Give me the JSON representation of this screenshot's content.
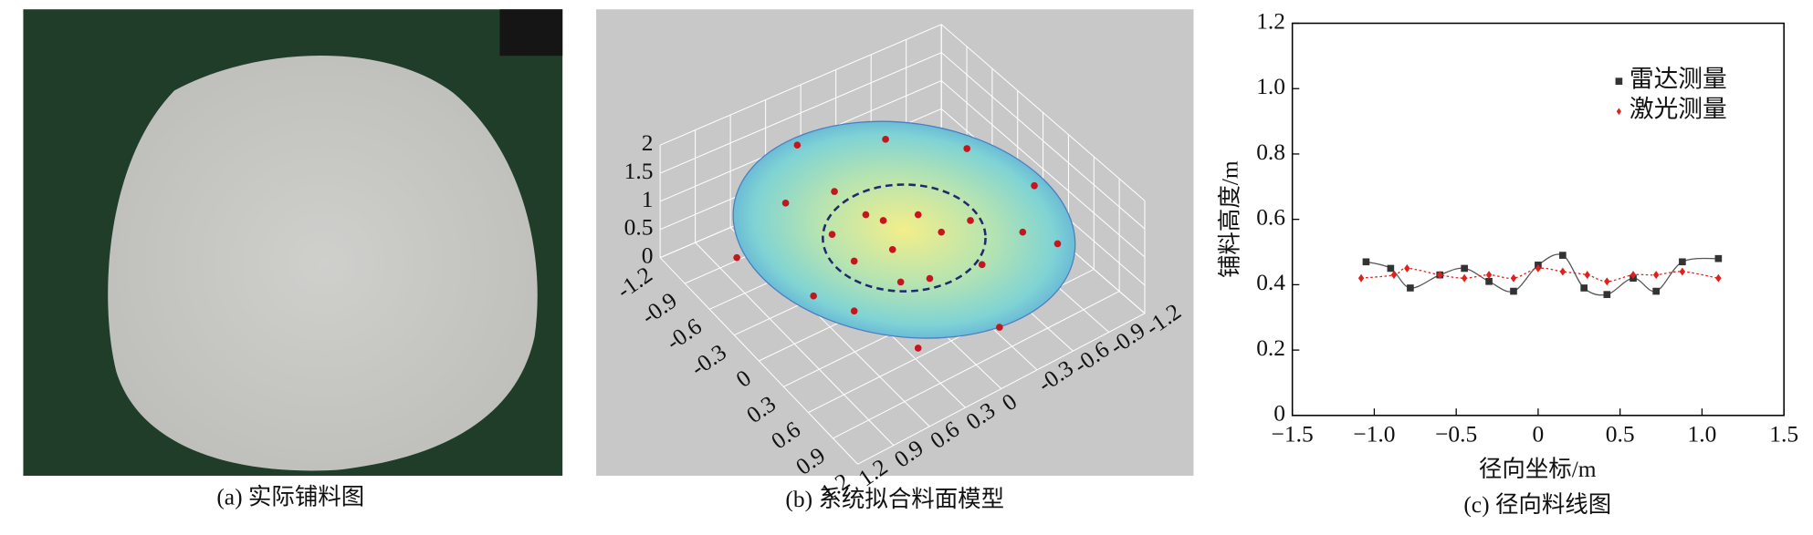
{
  "photo_panel": {
    "caption": "(a) 实际铺料图"
  },
  "model_panel": {
    "caption": "(b) 系统拟合料面模型",
    "z_ticks": [
      0,
      0.5,
      1,
      1.5,
      2
    ],
    "x_ticks": [
      -1.2,
      -0.9,
      -0.6,
      -0.3,
      0,
      0.3,
      0.6,
      0.9,
      1.2
    ],
    "y_ticks": [
      1.2,
      0.9,
      0.6,
      0.3,
      0,
      -0.3,
      -0.6,
      -0.9,
      -1.2
    ]
  },
  "chart_data": {
    "type": "line",
    "caption": "(c) 径向料线图",
    "x_label": "径向坐标/m",
    "y_label": "铺料高度/m",
    "xlim": [
      -1.5,
      1.5
    ],
    "ylim": [
      0,
      1.2
    ],
    "xticks": [
      {
        "value": -1.5,
        "label": "−1.5"
      },
      {
        "value": -1.0,
        "label": "−1.0"
      },
      {
        "value": -0.5,
        "label": "−0.5"
      },
      0,
      0.5,
      {
        "value": 1.0,
        "label": "1.0"
      },
      1.5
    ],
    "yticks": [
      0,
      0.2,
      0.4,
      0.6,
      0.8,
      {
        "value": 1.0,
        "label": "1.0"
      },
      1.2
    ],
    "legend": "upper-right",
    "series": [
      {
        "name": "雷达测量",
        "color": "#333333",
        "marker": "square",
        "line": "solid",
        "x": [
          -1.05,
          -0.9,
          -0.78,
          -0.6,
          -0.45,
          -0.3,
          -0.15,
          0,
          0.15,
          0.28,
          0.42,
          0.58,
          0.72,
          0.88,
          1.1
        ],
        "values": [
          0.47,
          0.45,
          0.39,
          0.43,
          0.45,
          0.41,
          0.38,
          0.46,
          0.49,
          0.39,
          0.37,
          0.42,
          0.38,
          0.47,
          0.48
        ]
      },
      {
        "name": "激光测量",
        "color": "#e0201b",
        "marker": "diamond",
        "line": "dotted",
        "x": [
          -1.08,
          -0.88,
          -0.8,
          -0.6,
          -0.45,
          -0.3,
          -0.15,
          0,
          0.15,
          0.3,
          0.42,
          0.58,
          0.72,
          0.88,
          1.1
        ],
        "values": [
          0.42,
          0.43,
          0.45,
          0.43,
          0.42,
          0.43,
          0.42,
          0.45,
          0.44,
          0.43,
          0.41,
          0.43,
          0.43,
          0.44,
          0.42
        ]
      }
    ]
  }
}
